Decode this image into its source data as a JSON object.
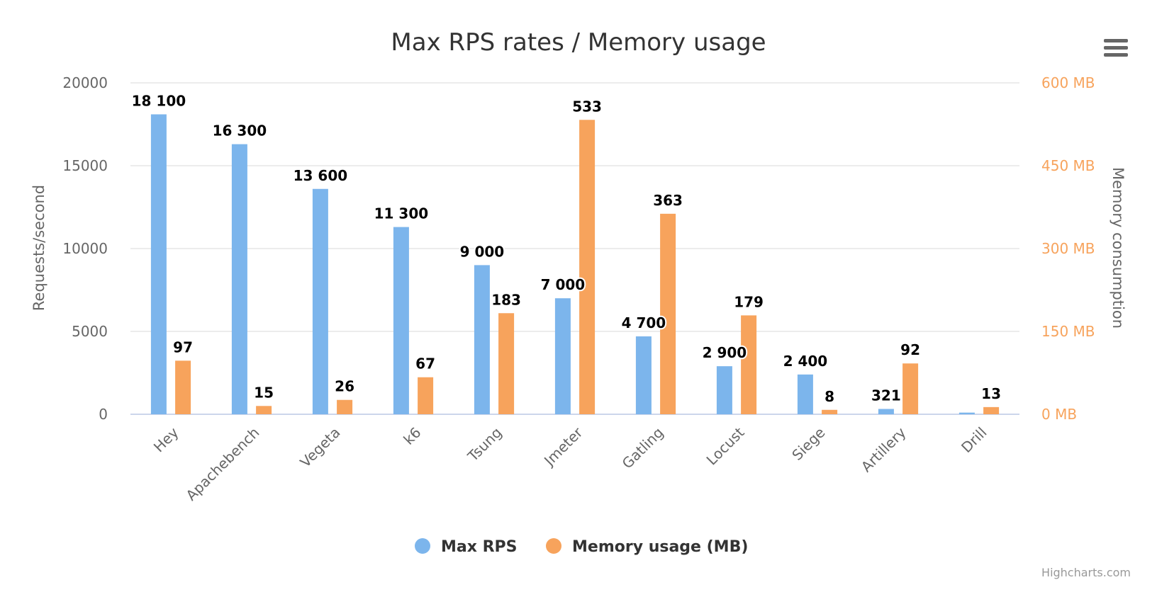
{
  "chart_data": {
    "type": "bar",
    "title": "Max RPS rates / Memory usage",
    "categories": [
      "Hey",
      "Apachebench",
      "Vegeta",
      "k6",
      "Tsung",
      "Jmeter",
      "Gatling",
      "Locust",
      "Siege",
      "Artillery",
      "Drill"
    ],
    "series": [
      {
        "name": "Max RPS",
        "axis": "left",
        "color": "#7cb5ec",
        "values": [
          18100,
          16300,
          13600,
          11300,
          9000,
          7000,
          4700,
          2900,
          2400,
          321,
          100
        ],
        "labels": [
          "18 100",
          "16 300",
          "13 600",
          "11 300",
          "9 000",
          "7 000",
          "4 700",
          "2 900",
          "2 400",
          "321",
          ""
        ]
      },
      {
        "name": "Memory usage (MB)",
        "axis": "right",
        "color": "#f7a35c",
        "values": [
          97,
          15,
          26,
          67,
          183,
          533,
          363,
          179,
          8,
          92,
          13
        ],
        "labels": [
          "97",
          "15",
          "26",
          "67",
          "183",
          "533",
          "363",
          "179",
          "8",
          "92",
          "13"
        ]
      }
    ],
    "y_left": {
      "label": "Requests/second",
      "range": [
        0,
        20000
      ],
      "ticks": [
        "0",
        "5000",
        "10000",
        "15000",
        "20000"
      ]
    },
    "y_right": {
      "label": "Memory consumption",
      "range": [
        0,
        600
      ],
      "ticks": [
        "0 MB",
        "150 MB",
        "300 MB",
        "450 MB",
        "600 MB"
      ]
    },
    "grid": true,
    "legend": "bottom-center"
  },
  "menu_icon": "hamburger-menu-icon",
  "credit": "Highcharts.com"
}
